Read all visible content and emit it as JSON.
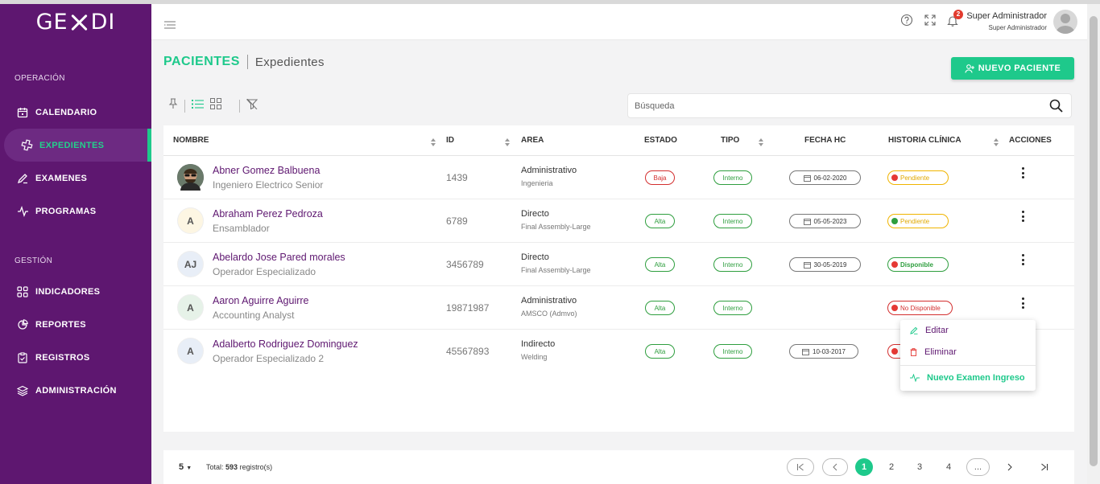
{
  "app": {
    "logo": "GEXDI",
    "logo_parts": [
      "GE",
      "DI"
    ]
  },
  "sidebar": {
    "sections": [
      {
        "title": "OPERACIÓN",
        "items": [
          {
            "label": "CALENDARIO",
            "icon": "calendar-icon"
          },
          {
            "label": "EXPEDIENTES",
            "icon": "medical-cross-icon",
            "active": true
          },
          {
            "label": "EXAMENES",
            "icon": "pen-icon"
          },
          {
            "label": "PROGRAMAS",
            "icon": "pulse-icon"
          }
        ]
      },
      {
        "title": "GESTIÓN",
        "items": [
          {
            "label": "INDICADORES",
            "icon": "grid-icon"
          },
          {
            "label": "REPORTES",
            "icon": "pie-chart-icon"
          },
          {
            "label": "REGISTROS",
            "icon": "clipboard-icon"
          },
          {
            "label": "ADMINISTRACIÓN",
            "icon": "layers-icon"
          }
        ]
      }
    ]
  },
  "header": {
    "notifications": "2",
    "user_name": "Super Administrador",
    "user_role": "Super Administrador"
  },
  "page": {
    "title": "PACIENTES",
    "subtitle": "Expedientes",
    "new_button": "NUEVO PACIENTE",
    "search_placeholder": "Búsqueda"
  },
  "table": {
    "columns": [
      "NOMBRE",
      "ID",
      "AREA",
      "ESTADO",
      "TIPO",
      "FECHA HC",
      "HISTORIA CLÍNICA",
      "ACCIONES"
    ],
    "rows": [
      {
        "avatar": "photo",
        "name": "Abner Gomez Balbuena",
        "role": "Ingeniero Electrico Senior",
        "id": "1439",
        "area": "Administrativo",
        "area_sub": "Ingenieria",
        "estado": "Baja",
        "tipo": "Interno",
        "fecha": "06-02-2020",
        "historia": "Pendiente",
        "historia_dot": "#e53935"
      },
      {
        "avatar": "A",
        "avatar_bg": "#fdf6e3",
        "name": "Abraham Perez Pedroza",
        "role": "Ensamblador",
        "id": "6789",
        "area": "Directo",
        "area_sub": "Final Assembly-Large",
        "estado": "Alta",
        "tipo": "Interno",
        "fecha": "05-05-2023",
        "historia": "Pendiente",
        "historia_dot": "#2e9e3e"
      },
      {
        "avatar": "AJ",
        "avatar_bg": "#e8eef7",
        "name": "Abelardo Jose Pared morales",
        "role": "Operador Especializado",
        "id": "3456789",
        "area": "Directo",
        "area_sub": "Final Assembly-Large",
        "estado": "Alta",
        "tipo": "Interno",
        "fecha": "30-05-2019",
        "historia": "Disponible",
        "historia_dot": "#e53935"
      },
      {
        "avatar": "A",
        "avatar_bg": "#e6f2e8",
        "name": "Aaron Aguirre Aguirre",
        "role": "Accounting Analyst",
        "id": "19871987",
        "area": "Administrativo",
        "area_sub": "AMSCO (Admvo)",
        "estado": "Alta",
        "tipo": "Interno",
        "fecha": "",
        "historia": "No Disponible",
        "historia_dot": "#e53935"
      },
      {
        "avatar": "A",
        "avatar_bg": "#e8eef7",
        "name": "Adalberto Rodriguez Dominguez",
        "role": "Operador Especializado 2",
        "id": "45567893",
        "area": "Indirecto",
        "area_sub": "Welding",
        "estado": "Alta",
        "tipo": "Interno",
        "fecha": "10-03-2017",
        "historia": "",
        "historia_dot": "#e53935"
      }
    ]
  },
  "menu": {
    "edit": "Editar",
    "delete": "Eliminar",
    "new_exam": "Nuevo Examen Ingreso"
  },
  "pagination": {
    "page_size": "5",
    "total_prefix": "Total:",
    "total": "593",
    "total_suffix": "registro(s)",
    "pages": [
      "1",
      "2",
      "3",
      "4"
    ],
    "ellipsis": "...",
    "current": "1"
  },
  "colors": {
    "accent": "#1ec98b",
    "sidebar": "#5e1770",
    "name": "#5e1770"
  }
}
